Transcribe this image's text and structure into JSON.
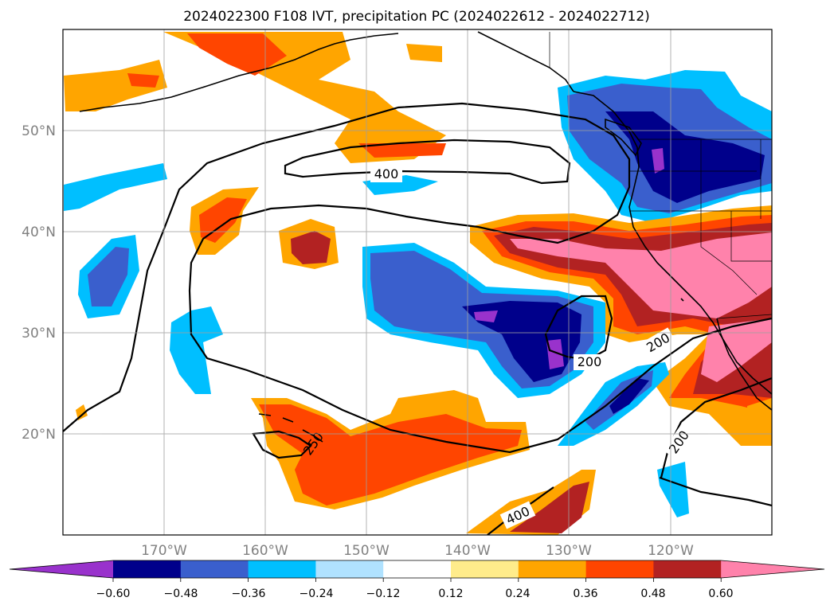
{
  "title": "2024022300 F108 IVT, precipitation PC (2024022612 - 2024022712)",
  "map": {
    "projection": "PlateCarree",
    "extent": {
      "lon_min": -180,
      "lon_max": -110,
      "lat_min": 10,
      "lat_max": 60
    },
    "gridlines": true,
    "lon_labels": [
      "170°W",
      "160°W",
      "150°W",
      "140°W",
      "130°W",
      "120°W"
    ],
    "lat_labels": [
      "50°N",
      "40°N",
      "30°N",
      "20°N"
    ]
  },
  "ivt_contours": {
    "labels": [
      "400",
      "200",
      "200",
      "250",
      "200",
      "400"
    ]
  },
  "colorbar": {
    "tick_labels": [
      "−0.60",
      "−0.48",
      "−0.36",
      "−0.24",
      "−0.12",
      "0.12",
      "0.24",
      "0.36",
      "0.48",
      "0.60"
    ],
    "colors": [
      "#9932cc",
      "#00008b",
      "#3a5fcd",
      "#00bfff",
      "#b0e2ff",
      "#ffffff",
      "#ffec8b",
      "#ffa500",
      "#ff4500",
      "#b22222",
      "#ff82ab"
    ]
  }
}
